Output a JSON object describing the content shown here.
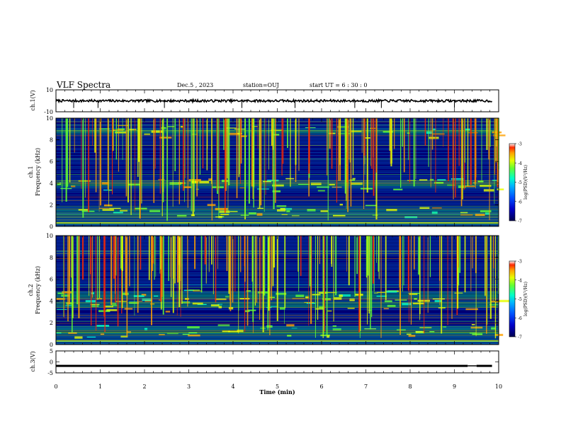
{
  "header": {
    "title": "VLF Spectra",
    "date": "Dec.5 , 2023",
    "station": "station=OUJ",
    "start": "start UT = 6 : 30 : 0"
  },
  "chart_data": [
    {
      "type": "line",
      "panel": "channel 1 waveform",
      "ylabel": "ch.1(V)",
      "ylim": [
        -10,
        10
      ],
      "yticks": [
        "10",
        "-10"
      ],
      "x_unit_min": [
        0,
        10
      ],
      "baseline": 0,
      "spikes_x": [
        0.4,
        0.95,
        2.45,
        4.2,
        5.4,
        6.75,
        7.35,
        9.0
      ]
    },
    {
      "type": "heatmap",
      "panel": "channel 1 spectrogram",
      "ylabel": "ch.1\nFrequency (kHz)",
      "ylabel_lines": [
        "ch.1",
        "Frequency (kHz)"
      ],
      "ylim": [
        0,
        10
      ],
      "yticks": [
        "0",
        "2",
        "4",
        "6",
        "8",
        "10"
      ],
      "colorbar": {
        "label": "log(PSD)(V²/Hz)",
        "range": [
          -7,
          -3
        ],
        "ticks": [
          "-3",
          "-4",
          "-5",
          "-6",
          "-7"
        ]
      },
      "bands_kHz": [
        1.5,
        3.9,
        8.8
      ],
      "seed": 11
    },
    {
      "type": "heatmap",
      "panel": "channel 2 spectrogram",
      "ylabel": "ch.2\nFrequency (kHz)",
      "ylabel_lines": [
        "ch.2",
        "Frequency (kHz)"
      ],
      "ylim": [
        0,
        10
      ],
      "yticks": [
        "0",
        "2",
        "4",
        "6",
        "8",
        "10"
      ],
      "colorbar": {
        "label": "log(PSD)(V²/Hz)",
        "range": [
          -7,
          -3
        ],
        "ticks": [
          "-3",
          "-4",
          "-5",
          "-6",
          "-7"
        ]
      },
      "bands_kHz": [
        1.3,
        3.7,
        4.5
      ],
      "seed": 29
    },
    {
      "type": "line",
      "panel": "channel 3 waveform",
      "ylabel": "ch.3(V)",
      "ylim": [
        -5,
        5
      ],
      "yticks": [
        "5",
        "0",
        "-5"
      ],
      "level": -1.8,
      "x_unit_min": [
        0,
        10
      ]
    }
  ],
  "xaxis": {
    "label": "Time (min)",
    "ticks": [
      "0",
      "1",
      "2",
      "3",
      "4",
      "5",
      "6",
      "7",
      "8",
      "9",
      "10"
    ],
    "range": [
      0,
      10
    ]
  },
  "colors": {
    "colormap": [
      "#000050",
      "#0000c8",
      "#0050ff",
      "#00b4ff",
      "#00ffc8",
      "#64ff32",
      "#e6ff00",
      "#ffa000",
      "#ff2800",
      "#ffffff"
    ]
  }
}
